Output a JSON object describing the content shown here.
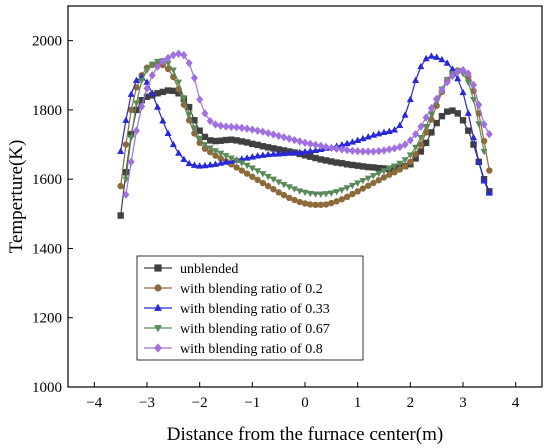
{
  "chart_data": {
    "type": "line",
    "xlabel": "Distance from the furnace center(m)",
    "ylabel": "Temperture(K)",
    "xlim": [
      -4.5,
      4.5
    ],
    "ylim": [
      1000,
      2100
    ],
    "xticks": [
      -4,
      -3,
      -2,
      -1,
      0,
      1,
      2,
      3,
      4
    ],
    "yticks": [
      1000,
      1200,
      1400,
      1600,
      1800,
      2000
    ],
    "grid": false,
    "legend_position": "lower-left",
    "series": [
      {
        "name": "unblended",
        "marker": "square",
        "color": "#404040",
        "x": [
          -3.5,
          -3.4,
          -3.3,
          -3.2,
          -3.1,
          -3.0,
          -2.9,
          -2.8,
          -2.7,
          -2.6,
          -2.5,
          -2.4,
          -2.3,
          -2.2,
          -2.1,
          -2.0,
          -1.9,
          -1.8,
          -1.7,
          -1.6,
          -1.5,
          -1.4,
          -1.3,
          -1.2,
          -1.1,
          -1.0,
          -0.9,
          -0.8,
          -0.7,
          -0.6,
          -0.5,
          -0.4,
          -0.3,
          -0.2,
          -0.1,
          0.0,
          0.1,
          0.2,
          0.3,
          0.4,
          0.5,
          0.6,
          0.7,
          0.8,
          0.9,
          1.0,
          1.1,
          1.2,
          1.3,
          1.4,
          1.5,
          1.6,
          1.7,
          1.8,
          1.9,
          2.0,
          2.1,
          2.2,
          2.3,
          2.4,
          2.5,
          2.6,
          2.7,
          2.8,
          2.9,
          3.0,
          3.1,
          3.2,
          3.3,
          3.4,
          3.5
        ],
        "y": [
          1495,
          1620,
          1730,
          1800,
          1828,
          1838,
          1842,
          1848,
          1852,
          1856,
          1855,
          1848,
          1832,
          1808,
          1770,
          1740,
          1722,
          1712,
          1710,
          1711,
          1713,
          1714,
          1712,
          1709,
          1706,
          1702,
          1699,
          1695,
          1692,
          1689,
          1686,
          1683,
          1680,
          1677,
          1673,
          1669,
          1665,
          1661,
          1657,
          1654,
          1651,
          1648,
          1646,
          1643,
          1641,
          1639,
          1637,
          1635,
          1634,
          1632,
          1631,
          1630,
          1632,
          1635,
          1638,
          1643,
          1660,
          1680,
          1705,
          1735,
          1762,
          1782,
          1795,
          1798,
          1790,
          1770,
          1740,
          1700,
          1650,
          1600,
          1565
        ]
      },
      {
        "name": "with blending ratio of 0.2",
        "marker": "circle",
        "color": "#8c6a3a",
        "x": [
          -3.5,
          -3.4,
          -3.3,
          -3.2,
          -3.1,
          -3.0,
          -2.9,
          -2.8,
          -2.7,
          -2.6,
          -2.5,
          -2.4,
          -2.3,
          -2.2,
          -2.1,
          -2.0,
          -1.9,
          -1.8,
          -1.7,
          -1.6,
          -1.5,
          -1.4,
          -1.3,
          -1.2,
          -1.1,
          -1.0,
          -0.9,
          -0.8,
          -0.7,
          -0.6,
          -0.5,
          -0.4,
          -0.3,
          -0.2,
          -0.1,
          0.0,
          0.1,
          0.2,
          0.3,
          0.4,
          0.5,
          0.6,
          0.7,
          0.8,
          0.9,
          1.0,
          1.1,
          1.2,
          1.3,
          1.4,
          1.5,
          1.6,
          1.7,
          1.8,
          1.9,
          2.0,
          2.1,
          2.2,
          2.3,
          2.4,
          2.5,
          2.6,
          2.7,
          2.8,
          2.9,
          3.0,
          3.1,
          3.2,
          3.3,
          3.4,
          3.5
        ],
        "y": [
          1580,
          1700,
          1800,
          1865,
          1900,
          1922,
          1930,
          1933,
          1930,
          1918,
          1895,
          1860,
          1815,
          1770,
          1732,
          1705,
          1688,
          1678,
          1668,
          1660,
          1652,
          1643,
          1634,
          1625,
          1616,
          1607,
          1598,
          1589,
          1580,
          1571,
          1562,
          1554,
          1546,
          1540,
          1534,
          1530,
          1527,
          1526,
          1526,
          1527,
          1531,
          1536,
          1542,
          1549,
          1557,
          1565,
          1573,
          1581,
          1589,
          1597,
          1605,
          1613,
          1620,
          1628,
          1637,
          1650,
          1672,
          1700,
          1735,
          1772,
          1812,
          1852,
          1885,
          1905,
          1914,
          1912,
          1895,
          1855,
          1790,
          1710,
          1625
        ]
      },
      {
        "name": "with blending ratio of 0.33",
        "marker": "triangle-up",
        "color": "#2828d8",
        "x": [
          -3.5,
          -3.4,
          -3.3,
          -3.2,
          -3.1,
          -3.0,
          -2.9,
          -2.8,
          -2.7,
          -2.6,
          -2.5,
          -2.4,
          -2.3,
          -2.2,
          -2.1,
          -2.0,
          -1.9,
          -1.8,
          -1.7,
          -1.6,
          -1.5,
          -1.4,
          -1.3,
          -1.2,
          -1.1,
          -1.0,
          -0.9,
          -0.8,
          -0.7,
          -0.6,
          -0.5,
          -0.4,
          -0.3,
          -0.2,
          -0.1,
          0.0,
          0.1,
          0.2,
          0.3,
          0.4,
          0.5,
          0.6,
          0.7,
          0.8,
          0.9,
          1.0,
          1.1,
          1.2,
          1.3,
          1.4,
          1.5,
          1.6,
          1.7,
          1.8,
          1.9,
          2.0,
          2.1,
          2.2,
          2.3,
          2.4,
          2.5,
          2.6,
          2.7,
          2.8,
          2.9,
          3.0,
          3.1,
          3.2,
          3.3,
          3.4,
          3.5
        ],
        "y": [
          1680,
          1770,
          1845,
          1885,
          1895,
          1880,
          1848,
          1808,
          1768,
          1732,
          1700,
          1675,
          1657,
          1645,
          1640,
          1638,
          1639,
          1641,
          1643,
          1646,
          1649,
          1652,
          1655,
          1658,
          1661,
          1664,
          1667,
          1669,
          1671,
          1672,
          1673,
          1674,
          1675,
          1676,
          1677,
          1679,
          1681,
          1683,
          1686,
          1689,
          1692,
          1695,
          1699,
          1703,
          1707,
          1712,
          1717,
          1722,
          1727,
          1731,
          1735,
          1738,
          1742,
          1755,
          1785,
          1830,
          1885,
          1925,
          1948,
          1955,
          1952,
          1945,
          1935,
          1918,
          1890,
          1850,
          1790,
          1720,
          1650,
          1595,
          1560
        ]
      },
      {
        "name": "with blending ratio of 0.67",
        "marker": "triangle-down",
        "color": "#5a8a5a",
        "x": [
          -3.4,
          -3.3,
          -3.2,
          -3.1,
          -3.0,
          -2.9,
          -2.8,
          -2.7,
          -2.6,
          -2.5,
          -2.4,
          -2.3,
          -2.2,
          -2.1,
          -2.0,
          -1.9,
          -1.8,
          -1.7,
          -1.6,
          -1.5,
          -1.4,
          -1.3,
          -1.2,
          -1.1,
          -1.0,
          -0.9,
          -0.8,
          -0.7,
          -0.6,
          -0.5,
          -0.4,
          -0.3,
          -0.2,
          -0.1,
          0.0,
          0.1,
          0.2,
          0.3,
          0.4,
          0.5,
          0.6,
          0.7,
          0.8,
          0.9,
          1.0,
          1.1,
          1.2,
          1.3,
          1.4,
          1.5,
          1.6,
          1.7,
          1.8,
          1.9,
          2.0,
          2.1,
          2.2,
          2.3,
          2.4,
          2.5,
          2.6,
          2.7,
          2.8,
          2.9,
          3.0,
          3.1,
          3.2,
          3.3,
          3.4
        ],
        "y": [
          1600,
          1720,
          1820,
          1885,
          1915,
          1932,
          1940,
          1942,
          1935,
          1915,
          1880,
          1835,
          1788,
          1748,
          1718,
          1700,
          1690,
          1682,
          1675,
          1668,
          1661,
          1654,
          1647,
          1640,
          1632,
          1624,
          1616,
          1608,
          1600,
          1592,
          1585,
          1578,
          1572,
          1566,
          1562,
          1559,
          1557,
          1557,
          1558,
          1560,
          1564,
          1569,
          1575,
          1582,
          1589,
          1596,
          1603,
          1610,
          1617,
          1624,
          1631,
          1638,
          1646,
          1656,
          1670,
          1692,
          1720,
          1752,
          1788,
          1825,
          1860,
          1888,
          1905,
          1912,
          1905,
          1880,
          1830,
          1760,
          1680
        ]
      },
      {
        "name": "with blending ratio of 0.8",
        "marker": "diamond",
        "color": "#a070e0",
        "x": [
          -3.4,
          -3.3,
          -3.2,
          -3.1,
          -3.0,
          -2.9,
          -2.8,
          -2.7,
          -2.6,
          -2.5,
          -2.4,
          -2.3,
          -2.2,
          -2.1,
          -2.0,
          -1.9,
          -1.8,
          -1.7,
          -1.6,
          -1.5,
          -1.4,
          -1.3,
          -1.2,
          -1.1,
          -1.0,
          -0.9,
          -0.8,
          -0.7,
          -0.6,
          -0.5,
          -0.4,
          -0.3,
          -0.2,
          -0.1,
          0.0,
          0.1,
          0.2,
          0.3,
          0.4,
          0.5,
          0.6,
          0.7,
          0.8,
          0.9,
          1.0,
          1.1,
          1.2,
          1.3,
          1.4,
          1.5,
          1.6,
          1.7,
          1.8,
          1.9,
          2.0,
          2.1,
          2.2,
          2.3,
          2.4,
          2.5,
          2.6,
          2.7,
          2.8,
          2.9,
          3.0,
          3.1,
          3.2,
          3.3,
          3.4,
          3.5
        ],
        "y": [
          1555,
          1650,
          1740,
          1810,
          1862,
          1900,
          1925,
          1940,
          1950,
          1958,
          1962,
          1958,
          1935,
          1892,
          1830,
          1790,
          1768,
          1758,
          1754,
          1752,
          1751,
          1750,
          1748,
          1746,
          1743,
          1740,
          1737,
          1733,
          1729,
          1725,
          1721,
          1717,
          1713,
          1709,
          1705,
          1702,
          1699,
          1696,
          1693,
          1690,
          1688,
          1686,
          1684,
          1682,
          1681,
          1680,
          1680,
          1680,
          1681,
          1683,
          1686,
          1689,
          1693,
          1700,
          1712,
          1730,
          1752,
          1778,
          1805,
          1832,
          1858,
          1880,
          1898,
          1910,
          1915,
          1905,
          1872,
          1815,
          1758,
          1730
        ]
      }
    ]
  }
}
